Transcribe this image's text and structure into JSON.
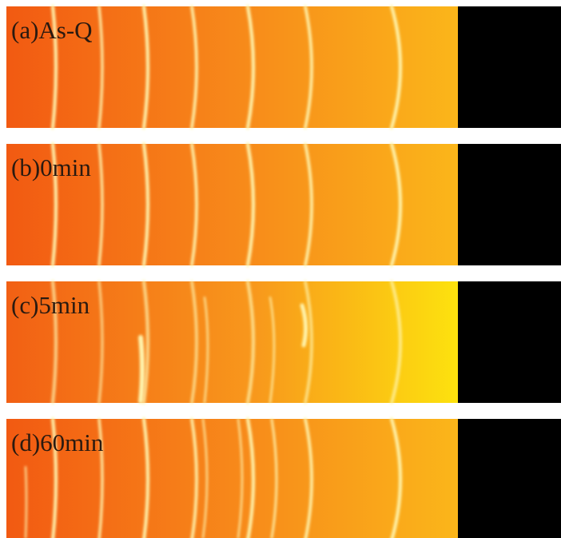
{
  "panels": [
    {
      "label": "(a)As-Q"
    },
    {
      "label": "(b)0min"
    },
    {
      "label": "(c)5min"
    },
    {
      "label": "(d)60min"
    }
  ]
}
